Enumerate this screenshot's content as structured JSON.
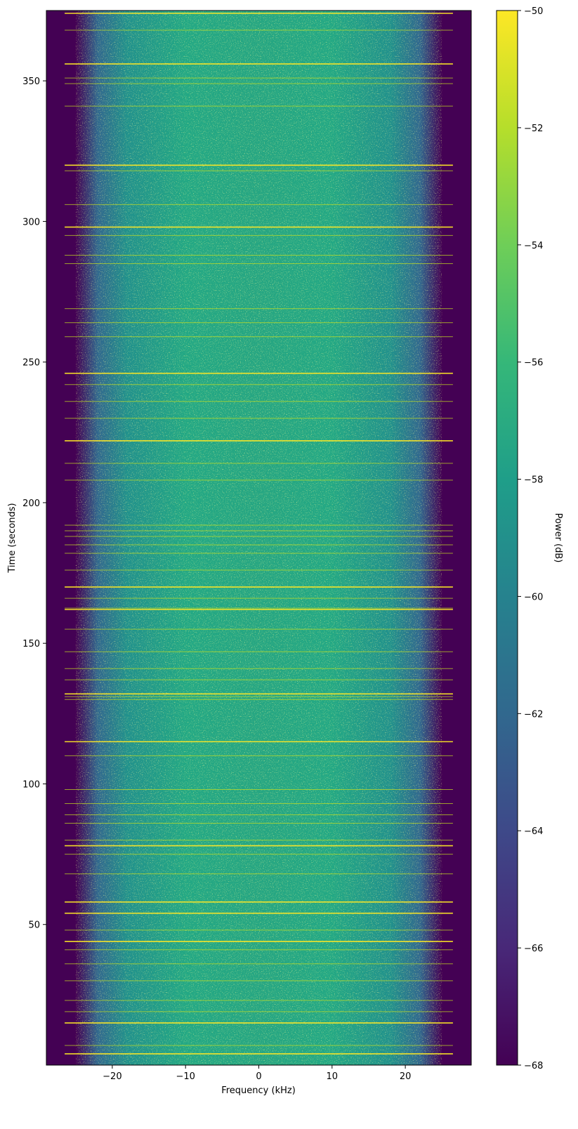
{
  "chart_data": {
    "type": "heatmap",
    "title": "",
    "xlabel": "Frequency (kHz)",
    "ylabel": "Time (seconds)",
    "xlim": [
      -29,
      29
    ],
    "ylim": [
      0,
      375
    ],
    "xticks": [
      -20,
      -10,
      0,
      10,
      20
    ],
    "xtick_labels": [
      "−20",
      "−10",
      "0",
      "10",
      "20"
    ],
    "yticks": [
      50,
      100,
      150,
      200,
      250,
      300,
      350
    ],
    "ytick_labels": [
      "50",
      "100",
      "150",
      "200",
      "250",
      "300",
      "350"
    ],
    "colorbar": {
      "label": "Power (dB)",
      "colormap": "viridis",
      "range": [
        -68,
        -50
      ],
      "ticks": [
        -68,
        -66,
        -64,
        -62,
        -60,
        -58,
        -56,
        -54,
        -52,
        -50
      ],
      "tick_labels": [
        "−68",
        "−66",
        "−64",
        "−62",
        "−60",
        "−58",
        "−56",
        "−54",
        "−52",
        "−50"
      ]
    },
    "passband_khz": [
      -25,
      25
    ],
    "floor_db": -68,
    "band_level_db": -57.5,
    "burst_line_times_s": [
      4,
      7,
      15,
      19,
      23,
      30,
      36,
      41,
      44,
      48,
      54,
      58,
      68,
      75,
      78,
      80,
      86,
      89,
      93,
      98,
      110,
      115,
      130,
      131,
      132,
      137,
      141,
      147,
      155,
      162,
      162.5,
      166,
      170,
      176,
      182,
      185,
      188,
      190,
      192,
      208,
      214,
      222,
      230,
      236,
      242,
      246,
      259,
      264,
      269,
      285,
      288,
      295,
      298,
      306,
      318,
      320,
      341,
      349,
      351,
      356,
      368,
      374
    ],
    "strong_line_times_s": [
      4,
      15,
      44,
      54,
      58,
      78,
      115,
      132,
      162,
      170,
      222,
      246,
      298,
      320,
      356,
      374
    ]
  },
  "colors": {
    "viridis_stops": [
      "#440154",
      "#482878",
      "#3e4989",
      "#31688e",
      "#26828e",
      "#1f9e89",
      "#35b779",
      "#6ece58",
      "#b5de2b",
      "#fde725"
    ],
    "floor": "#440154",
    "axis": "#000000",
    "background": "#ffffff"
  }
}
